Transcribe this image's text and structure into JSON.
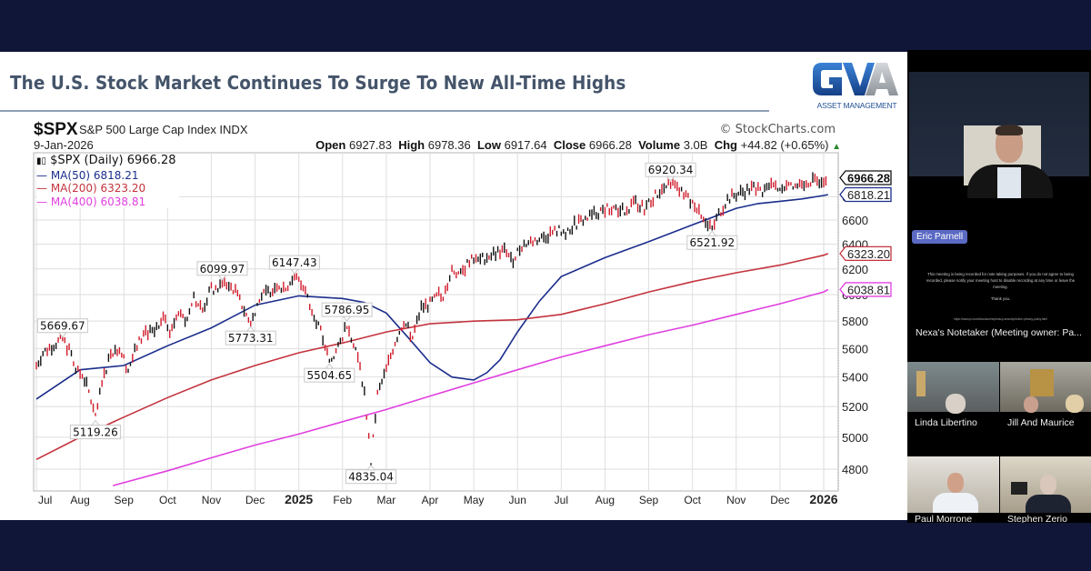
{
  "slide": {
    "title": "The U.S. Stock Market Continues To Surge To New All-Time Highs",
    "logo": {
      "mark": "GVA",
      "subtitle": "ASSET MANAGEMENT",
      "colors": {
        "blue": "#1f5db4",
        "gray": "#a8adb3"
      }
    }
  },
  "chart_header": {
    "symbol": "$SPX",
    "name": "S&P 500 Large Cap Index  INDX",
    "copyright": "© StockCharts.com",
    "date": "9-Jan-2026",
    "open_label": "Open",
    "open": "6927.83",
    "high_label": "High",
    "high": "6978.36",
    "low_label": "Low",
    "low": "6917.64",
    "close_label": "Close",
    "close": "6966.28",
    "volume_label": "Volume",
    "volume": "3.0B",
    "chg_label": "Chg",
    "chg": "+44.82 (+0.65%)",
    "chg_arrow": "▲"
  },
  "legend": {
    "main": "$SPX (Daily) 6966.28",
    "main_icon": "candlestick-icon",
    "ma50": "MA(50) 6818.21",
    "ma200": "MA(200) 6323.20",
    "ma400": "MA(400) 6038.81"
  },
  "chart_data": {
    "type": "line",
    "title": "$SPX S&P 500 Large Cap Index INDX",
    "subtitle": "9-Jan-2026  Open 6927.83 High 6978.36 Low 6917.64 Close 6966.28 Volume 3.0B Chg +44.82 (+0.65%)",
    "xlabel": "",
    "ylabel": "",
    "ylim": [
      4700,
      7050
    ],
    "yscale": "log",
    "grid": true,
    "legend_position": "top-left",
    "x_ticks": [
      "Jul",
      "Aug",
      "Sep",
      "Oct",
      "Nov",
      "Dec",
      "2025",
      "Feb",
      "Mar",
      "Apr",
      "May",
      "Jun",
      "Jul",
      "Aug",
      "Sep",
      "Oct",
      "Nov",
      "Dec",
      "2026"
    ],
    "x_bold_ticks": [
      "2025",
      "2026"
    ],
    "y_ticks": [
      4800,
      5000,
      5200,
      5400,
      5600,
      5800,
      6000,
      6200,
      6400,
      6600,
      6800
    ],
    "x_months": [
      "2024-07",
      "2024-08",
      "2024-09",
      "2024-10",
      "2024-11",
      "2024-12",
      "2025-01",
      "2025-02",
      "2025-03",
      "2025-04",
      "2025-05",
      "2025-06",
      "2025-07",
      "2025-08",
      "2025-09",
      "2025-10",
      "2025-11",
      "2025-12",
      "2026-01"
    ],
    "series": [
      {
        "name": "$SPX (Daily)",
        "color": "#111111",
        "down_color": "#d11a2a",
        "x": [
          0.0,
          0.15,
          0.4,
          0.6,
          0.8,
          0.95,
          1.05,
          1.2,
          1.35,
          1.5,
          1.7,
          1.9,
          2.1,
          2.3,
          2.5,
          2.7,
          2.9,
          3.05,
          3.2,
          3.4,
          3.6,
          3.8,
          4.0,
          4.1,
          4.25,
          4.5,
          4.7,
          4.9,
          5.1,
          5.3,
          5.5,
          5.7,
          5.9,
          6.1,
          6.3,
          6.5,
          6.7,
          6.9,
          7.1,
          7.3,
          7.5,
          7.65,
          7.8,
          8.0,
          8.2,
          8.4,
          8.6,
          8.8,
          9.0,
          9.1,
          9.2,
          9.3,
          9.4,
          9.5,
          9.7,
          9.9,
          10.1,
          10.3,
          10.5,
          10.7,
          10.9,
          11.1,
          11.3,
          11.5,
          11.7,
          11.9,
          12.1,
          12.3,
          12.5,
          12.7,
          12.9,
          13.1,
          13.3,
          13.5,
          13.7,
          13.9,
          14.1,
          14.3,
          14.5,
          14.7,
          14.9,
          15.1,
          15.3,
          15.45,
          15.6,
          15.8,
          16.0,
          16.2,
          16.4,
          16.6,
          16.8,
          17.0,
          17.2,
          17.4,
          17.6,
          17.8,
          18.0,
          18.1
        ],
        "values": [
          5480,
          5570,
          5630,
          5669.67,
          5560,
          5430,
          5420,
          5300,
          5119.26,
          5350,
          5580,
          5600,
          5450,
          5620,
          5730,
          5700,
          5820,
          5730,
          5860,
          5800,
          5980,
          5880,
          6050,
          6020,
          6099.97,
          6050,
          5920,
          5773.31,
          5980,
          6020,
          6080,
          6050,
          6147.43,
          6050,
          5900,
          5720,
          5504.65,
          5600,
          5786.95,
          5600,
          5300,
          4835.04,
          5280,
          5450,
          5650,
          5800,
          5680,
          5900,
          5930,
          5960,
          6000,
          5950,
          6080,
          6200,
          6150,
          6270,
          6260,
          6300,
          6330,
          6350,
          6280,
          6390,
          6420,
          6440,
          6480,
          6510,
          6500,
          6560,
          6600,
          6640,
          6680,
          6700,
          6660,
          6700,
          6750,
          6700,
          6790,
          6860,
          6920.34,
          6850,
          6780,
          6720,
          6600,
          6521.92,
          6650,
          6780,
          6820,
          6850,
          6880,
          6850,
          6900,
          6870,
          6930,
          6900,
          6940,
          6930,
          6966.28,
          6966.28
        ]
      },
      {
        "name": "MA(50)",
        "color": "#1b2d8c",
        "x": [
          0.0,
          1.0,
          2.0,
          3.0,
          4.0,
          5.0,
          6.0,
          7.0,
          7.5,
          8.0,
          8.5,
          9.0,
          9.5,
          10.0,
          10.3,
          10.6,
          11.0,
          11.5,
          12.0,
          13.0,
          14.0,
          15.0,
          16.0,
          16.5,
          17.0,
          17.5,
          18.0,
          18.1
        ],
        "values": [
          5250,
          5450,
          5480,
          5620,
          5750,
          5920,
          5990,
          5970,
          5940,
          5860,
          5680,
          5500,
          5400,
          5380,
          5430,
          5520,
          5720,
          5950,
          6140,
          6290,
          6420,
          6560,
          6700,
          6740,
          6760,
          6780,
          6810,
          6818.21
        ]
      },
      {
        "name": "MA(200)",
        "color": "#c4333d",
        "x": [
          0.0,
          1.0,
          2.0,
          3.0,
          4.0,
          5.0,
          6.0,
          7.0,
          8.0,
          9.0,
          10.0,
          11.0,
          12.0,
          13.0,
          14.0,
          15.0,
          16.0,
          17.0,
          18.0,
          18.1
        ],
        "values": [
          4860,
          5000,
          5130,
          5260,
          5380,
          5480,
          5570,
          5640,
          5720,
          5780,
          5800,
          5810,
          5850,
          5930,
          6020,
          6100,
          6170,
          6230,
          6310,
          6323.2
        ]
      },
      {
        "name": "MA(400)",
        "color": "#e040e0",
        "x": [
          1.75,
          3.0,
          4.0,
          5.0,
          6.0,
          7.0,
          8.0,
          9.0,
          10.0,
          11.0,
          12.0,
          13.0,
          14.0,
          15.0,
          16.0,
          17.0,
          18.0,
          18.1
        ],
        "values": [
          4700,
          4790,
          4870,
          4950,
          5020,
          5100,
          5180,
          5270,
          5360,
          5450,
          5540,
          5620,
          5700,
          5770,
          5850,
          5930,
          6020,
          6038.81
        ]
      }
    ],
    "annotations": [
      {
        "label": "5669.67",
        "x": 0.6,
        "y": 5669.67,
        "pos": "above"
      },
      {
        "label": "5119.26",
        "x": 1.35,
        "y": 5119.26,
        "pos": "below"
      },
      {
        "label": "6099.97",
        "x": 4.25,
        "y": 6099.97,
        "pos": "above"
      },
      {
        "label": "5773.31",
        "x": 4.9,
        "y": 5773.31,
        "pos": "below"
      },
      {
        "label": "6147.43",
        "x": 5.9,
        "y": 6147.43,
        "pos": "above"
      },
      {
        "label": "5786.95",
        "x": 7.1,
        "y": 5786.95,
        "pos": "above"
      },
      {
        "label": "5504.65",
        "x": 6.7,
        "y": 5504.65,
        "pos": "below"
      },
      {
        "label": "4835.04",
        "x": 7.65,
        "y": 4835.04,
        "pos": "below"
      },
      {
        "label": "6920.34",
        "x": 14.5,
        "y": 6920.34,
        "pos": "above"
      },
      {
        "label": "6521.92",
        "x": 15.45,
        "y": 6521.92,
        "pos": "below"
      }
    ],
    "last_value_tags": [
      {
        "label": "6966.28",
        "y": 6966.28,
        "color": "#111111",
        "bold": true
      },
      {
        "label": "6818.21",
        "y": 6818.21,
        "color": "#1b2d8c"
      },
      {
        "label": "6323.20",
        "y": 6323.2,
        "color": "#c4333d"
      },
      {
        "label": "6038.81",
        "y": 6038.81,
        "color": "#e040e0"
      }
    ]
  },
  "participants": {
    "speaker": {
      "name": "Eric Parnell",
      "chip_color": "#5b6ac4"
    },
    "notetaker": {
      "notice": "This meeting is being recorded for note taking purposes. If you do not agree to being recorded, please notify your meeting host to disable recording at any time or leave the meeting.",
      "thanks": "Thank you.",
      "url": "https://www.pi.com/disclosures/privacy-security/online-privacy-policy.html",
      "label": "Nexa's Notetaker (Meeting owner: Pa..."
    },
    "tiles": [
      {
        "name": "Linda Libertino"
      },
      {
        "name": "Jill And Maurice"
      },
      {
        "name": "Paul Morrone"
      },
      {
        "name": "Stephen Zerio"
      }
    ]
  }
}
